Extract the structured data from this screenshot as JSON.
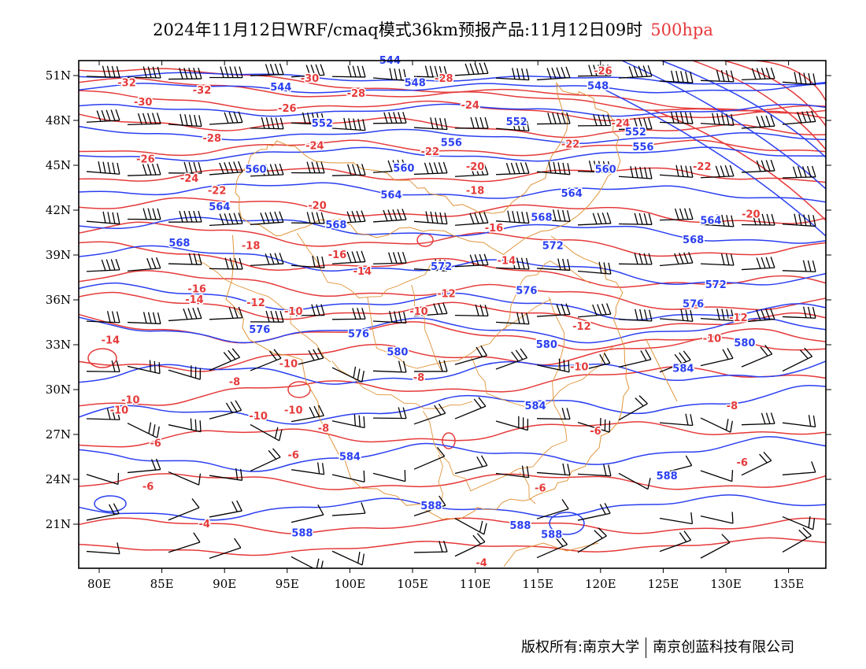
{
  "title": {
    "text": "2024年11月12日WRF/cmaq模式36km预报产品:11月12日09时",
    "level": "500hpa"
  },
  "axes": {
    "x_ticks": [
      "80E",
      "85E",
      "90E",
      "95E",
      "100E",
      "105E",
      "110E",
      "115E",
      "120E",
      "125E",
      "130E",
      "135E"
    ],
    "x_values": [
      80,
      85,
      90,
      95,
      100,
      105,
      110,
      115,
      120,
      125,
      130,
      135
    ],
    "y_ticks": [
      "51N",
      "48N",
      "45N",
      "42N",
      "39N",
      "36N",
      "33N",
      "30N",
      "27N",
      "24N",
      "21N"
    ],
    "y_values": [
      51,
      48,
      45,
      42,
      39,
      36,
      33,
      30,
      27,
      24,
      21
    ],
    "lon_range": [
      78,
      138
    ],
    "lat_range": [
      18,
      52
    ]
  },
  "colors": {
    "height": "#2a3ff0",
    "temperature": "#e53a3a",
    "boundary": "#e0943a",
    "wind": "#000000"
  },
  "chart_data": {
    "type": "map",
    "height_contours": [
      {
        "value": "544",
        "labels": [
          [
            103.2,
            52.0
          ]
        ]
      },
      {
        "value": "548",
        "labels": [
          [
            105.2,
            50.5
          ],
          [
            119.8,
            50.3
          ]
        ]
      },
      {
        "value": "544",
        "labels": [
          [
            94.5,
            50.2
          ]
        ]
      },
      {
        "value": "552",
        "labels": [
          [
            97.8,
            47.8
          ],
          [
            113.3,
            47.9
          ],
          [
            122.8,
            47.2
          ]
        ]
      },
      {
        "value": "556",
        "labels": [
          [
            108.1,
            46.5
          ],
          [
            123.4,
            46.2
          ]
        ]
      },
      {
        "value": "560",
        "labels": [
          [
            92.5,
            44.7
          ],
          [
            104.3,
            44.8
          ],
          [
            120.4,
            44.7
          ]
        ]
      },
      {
        "value": "564",
        "labels": [
          [
            89.6,
            42.2
          ],
          [
            103.3,
            43.0
          ],
          [
            117.7,
            43.1
          ],
          [
            128.8,
            41.3
          ]
        ]
      },
      {
        "value": "568",
        "labels": [
          [
            86.4,
            39.8
          ],
          [
            98.9,
            41.0
          ],
          [
            115.3,
            41.5
          ],
          [
            127.4,
            40.0
          ]
        ]
      },
      {
        "value": "572",
        "labels": [
          [
            107.3,
            38.2
          ],
          [
            116.2,
            39.6
          ],
          [
            129.2,
            37.0
          ]
        ]
      },
      {
        "value": "576",
        "labels": [
          [
            92.8,
            34.0
          ],
          [
            100.7,
            33.7
          ],
          [
            114.1,
            36.6
          ],
          [
            127.4,
            35.7
          ]
        ]
      },
      {
        "value": "580",
        "labels": [
          [
            103.8,
            32.5
          ],
          [
            115.7,
            33.0
          ],
          [
            131.5,
            33.1
          ]
        ]
      },
      {
        "value": "584",
        "labels": [
          [
            100.0,
            25.5
          ],
          [
            114.8,
            28.9
          ],
          [
            126.6,
            31.4
          ]
        ]
      },
      {
        "value": "588",
        "labels": [
          [
            106.5,
            22.2
          ],
          [
            96.2,
            20.4
          ],
          [
            113.6,
            20.9
          ],
          [
            116.1,
            20.3
          ],
          [
            125.3,
            24.2
          ]
        ]
      }
    ],
    "temperature_contours": [
      {
        "value": "-32",
        "labels": [
          [
            82.2,
            50.5
          ],
          [
            88.2,
            50.0
          ]
        ]
      },
      {
        "value": "-30",
        "labels": [
          [
            83.5,
            49.2
          ],
          [
            96.8,
            50.8
          ]
        ]
      },
      {
        "value": "-28",
        "labels": [
          [
            89.0,
            46.8
          ],
          [
            100.5,
            49.8
          ],
          [
            107.5,
            50.8
          ]
        ]
      },
      {
        "value": "-26",
        "labels": [
          [
            95.0,
            48.8
          ],
          [
            83.7,
            45.4
          ],
          [
            120.2,
            51.3
          ]
        ]
      },
      {
        "value": "-24",
        "labels": [
          [
            97.2,
            46.3
          ],
          [
            109.6,
            49.0
          ],
          [
            121.6,
            47.8
          ],
          [
            87.2,
            44.1
          ]
        ]
      },
      {
        "value": "-22",
        "labels": [
          [
            106.4,
            45.9
          ],
          [
            117.6,
            46.4
          ],
          [
            89.4,
            43.3
          ],
          [
            128.1,
            44.9
          ]
        ]
      },
      {
        "value": "-20",
        "labels": [
          [
            97.4,
            42.3
          ],
          [
            110.0,
            44.9
          ],
          [
            132.0,
            41.7
          ]
        ]
      },
      {
        "value": "-18",
        "labels": [
          [
            92.1,
            39.6
          ],
          [
            110.0,
            43.3
          ]
        ]
      },
      {
        "value": "-16",
        "labels": [
          [
            99.0,
            39.0
          ],
          [
            111.5,
            40.8
          ],
          [
            87.8,
            36.7
          ]
        ]
      },
      {
        "value": "-14",
        "labels": [
          [
            101.0,
            37.9
          ],
          [
            112.5,
            38.6
          ],
          [
            127.6,
            35.8
          ],
          [
            87.6,
            36.0
          ],
          [
            80.9,
            33.3
          ]
        ]
      },
      {
        "value": "-12",
        "labels": [
          [
            92.5,
            35.8
          ],
          [
            107.7,
            36.4
          ],
          [
            118.5,
            34.2
          ],
          [
            131.0,
            34.8
          ]
        ]
      },
      {
        "value": "-10",
        "labels": [
          [
            95.5,
            35.2
          ],
          [
            105.5,
            35.2
          ],
          [
            118.3,
            31.5
          ],
          [
            128.9,
            33.4
          ],
          [
            95.1,
            31.7
          ],
          [
            92.7,
            28.2
          ],
          [
            95.5,
            28.6
          ],
          [
            81.6,
            28.6
          ],
          [
            82.5,
            29.3
          ]
        ]
      },
      {
        "value": "-8",
        "labels": [
          [
            105.5,
            30.8
          ],
          [
            90.8,
            30.5
          ],
          [
            97.9,
            27.4
          ],
          [
            130.5,
            28.9
          ]
        ]
      },
      {
        "value": "-6",
        "labels": [
          [
            84.5,
            26.4
          ],
          [
            95.5,
            25.6
          ],
          [
            119.6,
            27.2
          ],
          [
            131.3,
            25.1
          ]
        ]
      },
      {
        "value": "-6",
        "labels": [
          [
            83.9,
            23.5
          ],
          [
            115.2,
            23.4
          ]
        ]
      },
      {
        "value": "-4",
        "labels": [
          [
            88.4,
            21.0
          ],
          [
            110.5,
            18.4
          ]
        ]
      }
    ]
  },
  "footer": {
    "left": "版权所有:南京大学",
    "right": "南京创蓝科技有限公司"
  }
}
